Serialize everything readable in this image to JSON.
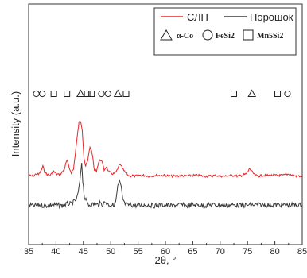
{
  "chart_data": {
    "type": "line",
    "xlabel": "2θ, °",
    "ylabel": "Intensity (a.u.)",
    "xlim": [
      35,
      85
    ],
    "x_ticks": [
      35,
      40,
      45,
      50,
      55,
      60,
      65,
      70,
      75,
      80,
      85
    ],
    "y_ticks_labeled": false,
    "grid": false,
    "legend_position": "top-right",
    "colors": {
      "slp": "#e8262a",
      "powder": "#3a3a3a"
    },
    "series": [
      {
        "name": "СЛП",
        "color": "#e8262a",
        "x": [
          35,
          35.6,
          36.0,
          36.4,
          36.8,
          37.2,
          37.6,
          37.9,
          38.4,
          38.8,
          39.2,
          39.6,
          40.0,
          40.5,
          41.0,
          41.5,
          42.0,
          42.4,
          42.8,
          43.2,
          43.6,
          44.0,
          44.2,
          44.5,
          44.8,
          45.1,
          45.4,
          45.8,
          46.2,
          46.6,
          47.0,
          47.4,
          47.8,
          48.3,
          48.8,
          49.2,
          49.6,
          50.0,
          50.5,
          51.0,
          51.3,
          51.6,
          52.0,
          52.4,
          52.8,
          53.2,
          53.6,
          54.0,
          54.5,
          55.0,
          56,
          57,
          58,
          59,
          60,
          61,
          62,
          63,
          64,
          65,
          66,
          67,
          68,
          69,
          70,
          71,
          71.8,
          72.5,
          73.2,
          74.0,
          74.8,
          75.4,
          75.9,
          76.4,
          77.0,
          77.8,
          78.5,
          79.0,
          79.5,
          80.0,
          80.8,
          81.5,
          82.0,
          82.6,
          83.2,
          84.0,
          85.0
        ],
        "y": [
          124,
          125,
          124,
          122,
          123,
          119,
          112,
          119,
          123,
          124,
          122,
          119,
          122,
          123,
          121,
          116,
          104,
          114,
          120,
          116,
          90,
          66,
          54,
          52,
          63,
          100,
          112,
          105,
          86,
          94,
          117,
          118,
          106,
          103,
          117,
          112,
          119,
          121,
          122,
          119,
          116,
          109,
          113,
          118,
          121,
          124,
          125,
          124,
          125,
          124,
          124,
          125,
          124,
          124,
          124,
          125,
          125,
          124,
          125,
          124,
          124,
          125,
          125,
          124,
          125,
          125,
          124,
          124,
          125,
          124,
          122,
          115,
          120,
          124,
          125,
          124,
          124,
          124,
          124,
          124,
          124,
          124,
          123,
          122,
          124,
          125,
          125
        ]
      },
      {
        "name": "Порошок",
        "color": "#3a3a3a",
        "x": [
          35,
          36,
          37,
          38,
          39,
          40,
          41,
          41.6,
          42.2,
          42.8,
          43.4,
          43.8,
          44.2,
          44.5,
          44.7,
          44.9,
          45.2,
          45.6,
          46.0,
          46.5,
          47.0,
          47.5,
          48.0,
          48.5,
          49.0,
          49.5,
          50.0,
          50.5,
          50.9,
          51.3,
          51.6,
          51.9,
          52.2,
          52.5,
          53.0,
          54.0,
          55,
          56,
          57,
          58,
          59,
          60,
          61,
          62,
          63,
          64,
          65,
          66,
          67,
          68,
          69,
          70,
          71,
          72,
          73,
          74,
          75,
          76,
          77,
          78,
          79,
          80,
          81,
          82,
          83,
          84,
          85
        ],
        "y": [
          40,
          41,
          40,
          41,
          40,
          40,
          41,
          40,
          38,
          39,
          35,
          32,
          18,
          0,
          -17,
          8,
          30,
          36,
          40,
          39,
          39,
          40,
          38,
          39,
          36,
          39,
          40,
          40,
          36,
          16,
          9,
          17,
          32,
          38,
          40,
          40,
          41,
          40,
          40,
          41,
          40,
          40,
          41,
          40,
          40,
          41,
          40,
          40,
          41,
          40,
          40,
          40,
          41,
          40,
          40,
          41,
          40,
          40,
          40,
          40,
          40,
          40,
          40,
          40,
          40,
          40,
          40
        ]
      }
    ],
    "phase_legend": [
      {
        "symbol": "triangle",
        "label": "α-Co"
      },
      {
        "symbol": "circle",
        "label": "FeSi2"
      },
      {
        "symbol": "square",
        "label": "Mn5Si2"
      }
    ],
    "markers": [
      {
        "symbol": "circle",
        "x": 36.4
      },
      {
        "symbol": "circle",
        "x": 37.5
      },
      {
        "symbol": "square",
        "x": 39.6
      },
      {
        "symbol": "square",
        "x": 42.0
      },
      {
        "symbol": "triangle",
        "x": 44.5
      },
      {
        "symbol": "square",
        "x": 45.7
      },
      {
        "symbol": "square",
        "x": 46.5
      },
      {
        "symbol": "circle",
        "x": 48.3
      },
      {
        "symbol": "circle",
        "x": 49.5
      },
      {
        "symbol": "triangle",
        "x": 51.3
      },
      {
        "symbol": "square",
        "x": 52.8
      },
      {
        "symbol": "square",
        "x": 72.5
      },
      {
        "symbol": "triangle",
        "x": 75.8
      },
      {
        "symbol": "square",
        "x": 80.5
      },
      {
        "symbol": "circle",
        "x": 82.3
      }
    ]
  }
}
